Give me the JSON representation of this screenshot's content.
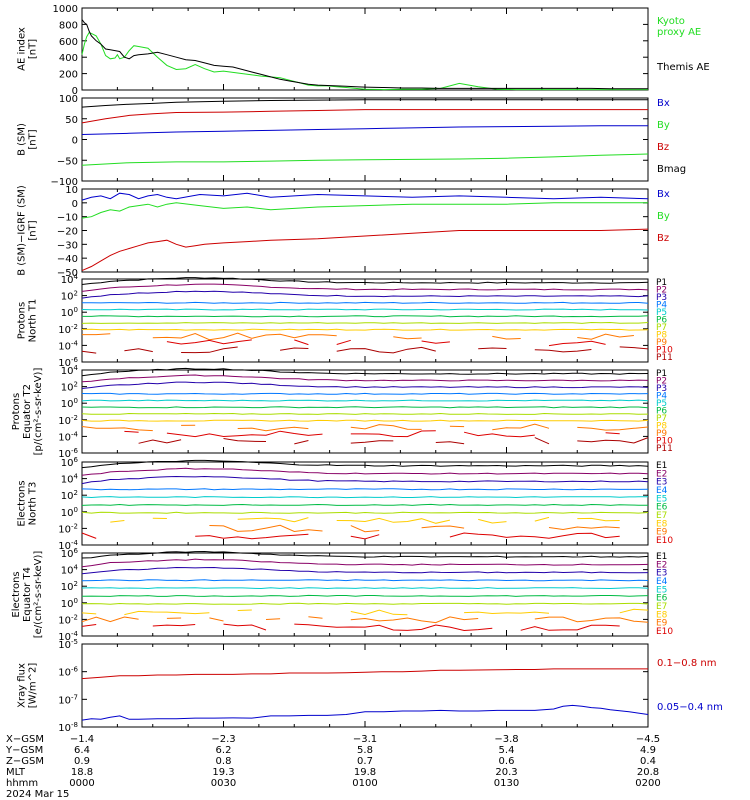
{
  "colors": {
    "black": "#000000",
    "red": "#cc0000",
    "green": "#22dd22",
    "blue": "#0000cc",
    "darkred": "#aa0000",
    "p1": "#000000",
    "p2": "#880066",
    "p3": "#2200aa",
    "p4": "#0077ff",
    "p5": "#00cccc",
    "p6": "#00bb44",
    "p7": "#aadd00",
    "p8": "#ffcc00",
    "p9": "#ff7700",
    "p10": "#dd0000",
    "p11": "#aa0000"
  },
  "chart_data": [
    {
      "id": "ae",
      "type": "line",
      "ylabel": "AE index\n[nT]",
      "ylim": [
        0,
        1000
      ],
      "yticks": [
        "1000",
        "800",
        "600",
        "400",
        "200",
        "0"
      ],
      "ytick_values": [
        1000,
        800,
        600,
        400,
        200,
        0
      ],
      "series": [
        {
          "name": "Kyoto\nproxy AE",
          "color": "green",
          "x": [
            0,
            0.5,
            1,
            1.5,
            2,
            3,
            4,
            5,
            6,
            7,
            7.5,
            8,
            9,
            10,
            11,
            12,
            14,
            16,
            18,
            20,
            22,
            24,
            26,
            28,
            30,
            34,
            38,
            40,
            42,
            44,
            46,
            48,
            50,
            52,
            54,
            56,
            58,
            60,
            64,
            68,
            72,
            76,
            80,
            84,
            88,
            92,
            96,
            100,
            104,
            108,
            112,
            116,
            120
          ],
          "y": [
            430,
            560,
            650,
            700,
            690,
            660,
            560,
            420,
            380,
            390,
            430,
            380,
            400,
            480,
            540,
            530,
            510,
            400,
            300,
            250,
            260,
            310,
            260,
            220,
            230,
            200,
            170,
            160,
            150,
            120,
            90,
            60,
            50,
            50,
            40,
            30,
            20,
            10,
            5,
            10,
            10,
            20,
            80,
            40,
            10,
            5,
            5,
            5,
            5,
            5,
            5,
            5,
            5
          ]
        },
        {
          "name": "Themis AE",
          "color": "black",
          "x": [
            0,
            0.5,
            1,
            1.5,
            2,
            3,
            4,
            5,
            6,
            7,
            8,
            9,
            10,
            11,
            12,
            14,
            16,
            18,
            20,
            22,
            24,
            26,
            28,
            30,
            32,
            34,
            36,
            38,
            40,
            42,
            44,
            46,
            48,
            50,
            52,
            54,
            56,
            58,
            60,
            64,
            68,
            72,
            76,
            80,
            84,
            88,
            92,
            96,
            100,
            104,
            108,
            112,
            116,
            120
          ],
          "y": [
            860,
            820,
            800,
            720,
            660,
            600,
            560,
            500,
            490,
            480,
            470,
            400,
            380,
            420,
            430,
            440,
            460,
            430,
            400,
            370,
            360,
            330,
            300,
            290,
            280,
            250,
            220,
            190,
            160,
            130,
            110,
            90,
            70,
            60,
            55,
            50,
            45,
            40,
            35,
            30,
            25,
            25,
            20,
            20,
            20,
            20,
            20,
            20,
            20,
            20,
            20,
            15,
            15,
            15
          ]
        }
      ]
    },
    {
      "id": "bsm",
      "type": "line",
      "ylabel": "B (SM)\n[nT]",
      "ylim": [
        -100,
        100
      ],
      "yticks": [
        "100",
        "50",
        "0",
        "−50",
        "−100"
      ],
      "ytick_values": [
        100,
        50,
        0,
        -50,
        -100
      ],
      "series": [
        {
          "name": "Bx",
          "color": "blue",
          "x": [
            0,
            10,
            20,
            30,
            40,
            50,
            60,
            70,
            80,
            90,
            100,
            110,
            120
          ],
          "y": [
            12,
            15,
            18,
            20,
            22,
            24,
            26,
            28,
            30,
            31,
            32,
            33,
            33
          ]
        },
        {
          "name": "By",
          "color": "green",
          "x": [
            0,
            10,
            20,
            30,
            40,
            50,
            60,
            70,
            80,
            90,
            100,
            110,
            120
          ],
          "y": [
            -62,
            -56,
            -54,
            -54,
            -52,
            -50,
            -49,
            -48,
            -47,
            -45,
            -42,
            -38,
            -35
          ]
        },
        {
          "name": "Bz",
          "color": "red",
          "x": [
            0,
            5,
            10,
            15,
            20,
            30,
            40,
            50,
            60,
            70,
            80,
            90,
            100,
            110,
            120
          ],
          "y": [
            40,
            50,
            58,
            62,
            65,
            66,
            68,
            70,
            72,
            72,
            72,
            72,
            72,
            72,
            72
          ]
        },
        {
          "name": "Bmag",
          "color": "black",
          "x": [
            0,
            5,
            10,
            15,
            20,
            30,
            40,
            50,
            60,
            70,
            80,
            90,
            100,
            110,
            120
          ],
          "y": [
            78,
            82,
            85,
            87,
            90,
            92,
            94,
            95,
            96,
            96,
            96,
            96,
            96,
            96,
            96
          ]
        }
      ]
    },
    {
      "id": "bigrf",
      "type": "line",
      "ylabel": "B (SM)−IGRF (SM)\n[nT]",
      "ylim": [
        -50,
        10
      ],
      "yticks": [
        "10",
        "0",
        "−10",
        "−20",
        "−30",
        "−40",
        "−50"
      ],
      "ytick_values": [
        10,
        0,
        -10,
        -20,
        -30,
        -40,
        -50
      ],
      "series": [
        {
          "name": "Bx",
          "color": "blue",
          "x": [
            0,
            2,
            4,
            6,
            8,
            10,
            12,
            14,
            16,
            18,
            20,
            25,
            30,
            35,
            40,
            50,
            60,
            70,
            80,
            90,
            100,
            110,
            120
          ],
          "y": [
            2,
            4,
            5,
            3,
            7,
            6,
            3,
            5,
            6,
            4,
            3,
            6,
            5,
            7,
            4,
            6,
            5,
            4,
            5,
            4,
            3,
            4,
            3
          ]
        },
        {
          "name": "By",
          "color": "green",
          "x": [
            0,
            2,
            4,
            6,
            8,
            10,
            12,
            14,
            16,
            18,
            20,
            25,
            30,
            35,
            40,
            50,
            60,
            70,
            80,
            90,
            100,
            110,
            120
          ],
          "y": [
            -11,
            -10,
            -7,
            -5,
            -6,
            -3,
            -2,
            -1,
            -3,
            -1,
            0,
            -2,
            -4,
            -3,
            -5,
            -3,
            -2,
            -1,
            -1,
            -1,
            0,
            0,
            0
          ]
        },
        {
          "name": "Bz",
          "color": "red",
          "x": [
            0,
            2,
            4,
            6,
            8,
            10,
            12,
            14,
            16,
            18,
            20,
            22,
            24,
            26,
            30,
            35,
            40,
            50,
            60,
            70,
            80,
            90,
            100,
            110,
            120
          ],
          "y": [
            -49,
            -46,
            -42,
            -38,
            -35,
            -33,
            -31,
            -29,
            -28,
            -27,
            -30,
            -32,
            -31,
            -30,
            -29,
            -28,
            -27,
            -26,
            -24,
            -22,
            -20,
            -20,
            -20,
            -20,
            -19
          ]
        }
      ]
    },
    {
      "id": "pn1",
      "type": "line",
      "ylabel": "Protons\nNorth T1",
      "scale": "log",
      "ylim": [
        -6,
        4
      ],
      "yticks": [
        "10^4",
        "10^2",
        "10^0",
        "10^-2",
        "10^-4",
        "10^-6"
      ],
      "ytick_values": [
        4,
        2,
        0,
        -2,
        -4,
        -6
      ],
      "legend": [
        "P1",
        "P2",
        "P3",
        "P4",
        "P5",
        "P6",
        "P7",
        "P8",
        "P9",
        "P10",
        "P11"
      ],
      "legend_colors": [
        "p1",
        "p2",
        "p3",
        "p4",
        "p5",
        "p6",
        "p7",
        "p8",
        "p9",
        "p10",
        "p11"
      ]
    },
    {
      "id": "pe2",
      "type": "line",
      "ylabel": "Protons\nEquator T2\n[p/(cm²-s-sr-keV)]",
      "scale": "log",
      "ylim": [
        -6,
        4
      ],
      "yticks": [
        "10^4",
        "10^2",
        "10^0",
        "10^-2",
        "10^-4",
        "10^-6"
      ],
      "ytick_values": [
        4,
        2,
        0,
        -2,
        -4,
        -6
      ],
      "legend": [
        "P1",
        "P2",
        "P3",
        "P4",
        "P5",
        "P6",
        "P7",
        "P8",
        "P9",
        "P10",
        "P11"
      ],
      "legend_colors": [
        "p1",
        "p2",
        "p3",
        "p4",
        "p5",
        "p6",
        "p7",
        "p8",
        "p9",
        "p10",
        "p11"
      ]
    },
    {
      "id": "en3",
      "type": "line",
      "ylabel": "Electrons\nNorth T3",
      "scale": "log",
      "ylim": [
        -4,
        6
      ],
      "yticks": [
        "10^6",
        "10^4",
        "10^2",
        "10^0",
        "10^-2",
        "10^-4"
      ],
      "ytick_values": [
        6,
        4,
        2,
        0,
        -2,
        -4
      ],
      "legend": [
        "E1",
        "E2",
        "E3",
        "E4",
        "E5",
        "E6",
        "E7",
        "E8",
        "E9",
        "E10"
      ],
      "legend_colors": [
        "p1",
        "p2",
        "p3",
        "p4",
        "p5",
        "p6",
        "p7",
        "p8",
        "p9",
        "p10"
      ]
    },
    {
      "id": "ee4",
      "type": "line",
      "ylabel": "Electrons\nEquator T4\n[e/(cm²-s-sr-keV)]",
      "scale": "log",
      "ylim": [
        -4,
        6
      ],
      "yticks": [
        "10^6",
        "10^4",
        "10^2",
        "10^0",
        "10^-2",
        "10^-4"
      ],
      "ytick_values": [
        6,
        4,
        2,
        0,
        -2,
        -4
      ],
      "legend": [
        "E1",
        "E2",
        "E3",
        "E4",
        "E5",
        "E6",
        "E7",
        "E8",
        "E9",
        "E10"
      ],
      "legend_colors": [
        "p1",
        "p2",
        "p3",
        "p4",
        "p5",
        "p6",
        "p7",
        "p8",
        "p9",
        "p10"
      ]
    },
    {
      "id": "xray",
      "type": "line",
      "ylabel": "Xray flux\n[W/m^2]",
      "scale": "log",
      "ylim": [
        -8,
        -5
      ],
      "yticks": [
        "10^-5",
        "10^-6",
        "10^-7",
        "10^-8"
      ],
      "ytick_values": [
        -5,
        -6,
        -7,
        -8
      ],
      "series": [
        {
          "name": "0.1−0.8 nm",
          "color": "red",
          "x": [
            0,
            4,
            8,
            12,
            16,
            20,
            24,
            28,
            32,
            36,
            40,
            44,
            48,
            52,
            56,
            60,
            64,
            68,
            72,
            76,
            80,
            84,
            88,
            92,
            96,
            100,
            104,
            108,
            112,
            116,
            120
          ],
          "y": [
            -6.25,
            -6.2,
            -6.15,
            -6.15,
            -6.12,
            -6.12,
            -6.1,
            -6.1,
            -6.1,
            -6.08,
            -6.08,
            -6.05,
            -6.05,
            -6.05,
            -6.04,
            -6.02,
            -6.0,
            -6.0,
            -5.98,
            -5.95,
            -5.95,
            -5.94,
            -5.93,
            -5.92,
            -5.92,
            -5.9,
            -5.9,
            -5.9,
            -5.9,
            -5.9,
            -5.9
          ]
        },
        {
          "name": "0.05−0.4 nm",
          "color": "blue",
          "x": [
            0,
            2,
            4,
            6,
            8,
            10,
            12,
            16,
            20,
            24,
            28,
            32,
            36,
            40,
            44,
            48,
            52,
            56,
            60,
            64,
            68,
            72,
            76,
            80,
            84,
            88,
            92,
            96,
            100,
            102,
            104,
            106,
            108,
            110,
            112,
            116,
            120
          ],
          "y": [
            -7.75,
            -7.7,
            -7.72,
            -7.65,
            -7.6,
            -7.72,
            -7.72,
            -7.7,
            -7.7,
            -7.68,
            -7.68,
            -7.67,
            -7.68,
            -7.6,
            -7.6,
            -7.58,
            -7.58,
            -7.55,
            -7.45,
            -7.45,
            -7.42,
            -7.42,
            -7.4,
            -7.42,
            -7.42,
            -7.4,
            -7.4,
            -7.4,
            -7.35,
            -7.25,
            -7.22,
            -7.25,
            -7.3,
            -7.32,
            -7.38,
            -7.45,
            -7.55
          ]
        }
      ]
    }
  ],
  "xaxis": {
    "rows": [
      {
        "label": "X−GSM",
        "values": [
          "−1.4",
          "−2.3",
          "−3.1",
          "−3.8",
          "−4.5"
        ]
      },
      {
        "label": "Y−GSM",
        "values": [
          "6.4",
          "6.2",
          "5.8",
          "5.4",
          "4.9"
        ]
      },
      {
        "label": "Z−GSM",
        "values": [
          "0.9",
          "0.8",
          "0.7",
          "0.6",
          "0.4"
        ]
      },
      {
        "label": "MLT",
        "values": [
          "18.8",
          "19.3",
          "19.8",
          "20.3",
          "20.8"
        ]
      },
      {
        "label": "hhmm",
        "values": [
          "0000",
          "0030",
          "0100",
          "0130",
          "0200"
        ]
      }
    ],
    "date": "2024 Mar 15",
    "xlim": [
      0,
      120
    ],
    "major_ticks": [
      0,
      30,
      60,
      90,
      120
    ]
  }
}
